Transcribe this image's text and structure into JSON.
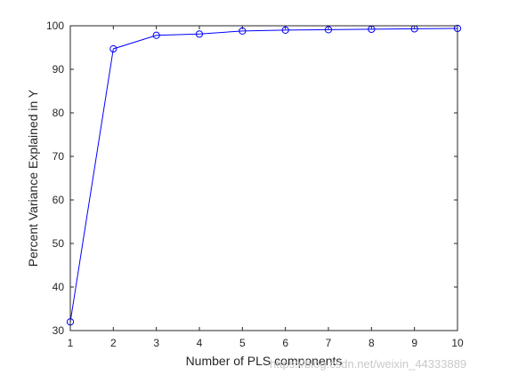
{
  "chart_data": {
    "type": "line",
    "title": "",
    "xlabel": "Number of PLS components",
    "ylabel": "Percent Variance Explained in Y",
    "x": [
      1,
      2,
      3,
      4,
      5,
      6,
      7,
      8,
      9,
      10
    ],
    "series": [
      {
        "values": [
          32.0,
          94.7,
          97.8,
          98.1,
          98.8,
          99.0,
          99.1,
          99.2,
          99.3,
          99.4
        ],
        "color": "#0000ff",
        "marker": "circle"
      }
    ],
    "xlim": [
      1,
      10
    ],
    "ylim": [
      30,
      100
    ],
    "xticks": [
      "1",
      "2",
      "3",
      "4",
      "5",
      "6",
      "7",
      "8",
      "9",
      "10"
    ],
    "yticks": [
      "30",
      "40",
      "50",
      "60",
      "70",
      "80",
      "90",
      "100"
    ],
    "grid": false,
    "legend": "none"
  },
  "watermark": "https://blog.csdn.net/weixin_44333889"
}
